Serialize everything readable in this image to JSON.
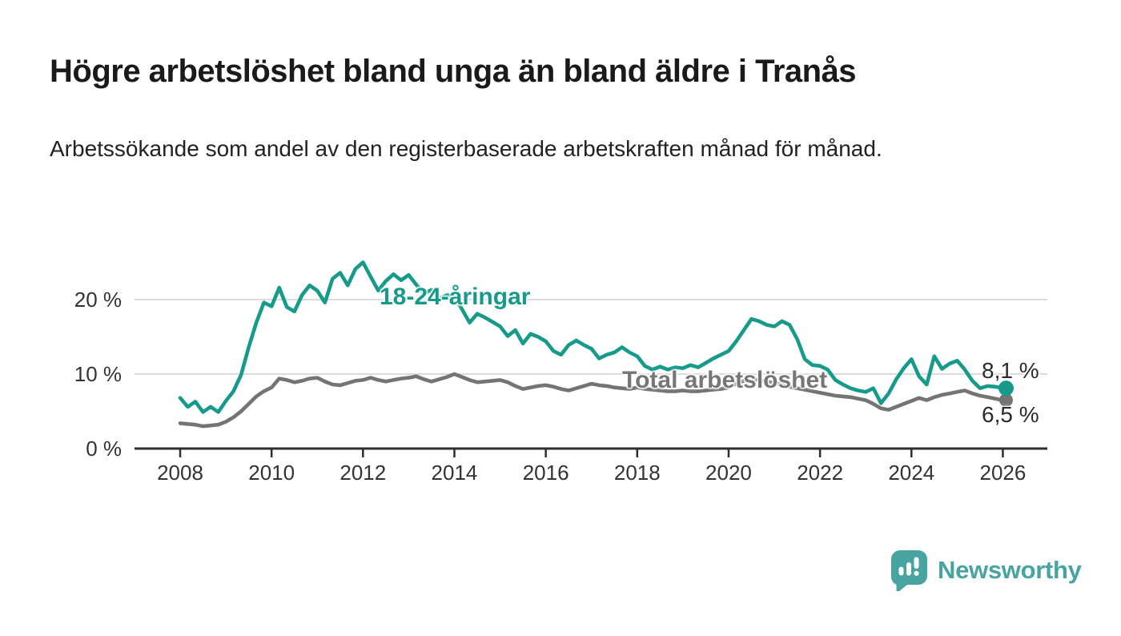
{
  "header": {
    "title": "Högre arbetslöshet bland unga än bland äldre i Tranås",
    "subtitle": "Arbetssökande som andel av den registerbaserade arbetskraften månad för månad."
  },
  "chart_data": {
    "type": "line",
    "grid": "horizontal",
    "legend": "inline-labels",
    "x_axis": {
      "tick_labels": [
        "2008",
        "2010",
        "2012",
        "2014",
        "2016",
        "2018",
        "2020",
        "2022",
        "2024",
        "2026"
      ],
      "tick_years": [
        2008,
        2010,
        2012,
        2014,
        2016,
        2018,
        2020,
        2022,
        2024,
        2026
      ]
    },
    "y_axis": {
      "tick_labels": [
        "0 %",
        "10 %",
        "20 %"
      ],
      "tick_values": [
        0,
        10,
        20
      ],
      "ylim": [
        0,
        27
      ],
      "gridline_values": [
        10,
        20
      ]
    },
    "x_start_year": 2008.0,
    "x_step_years": 0.16667,
    "series": [
      {
        "name": "Total arbetslöshet",
        "color": "#747474",
        "end_label": "6,5 %",
        "end_value": 6.5,
        "values": [
          3.4,
          3.3,
          3.2,
          3.0,
          3.1,
          3.2,
          3.6,
          4.2,
          5.0,
          6.0,
          7.0,
          7.7,
          8.2,
          9.4,
          9.2,
          8.9,
          9.1,
          9.4,
          9.5,
          9.0,
          8.6,
          8.5,
          8.8,
          9.1,
          9.2,
          9.5,
          9.2,
          9.0,
          9.2,
          9.4,
          9.5,
          9.7,
          9.3,
          9.0,
          9.3,
          9.6,
          10.0,
          9.6,
          9.2,
          8.9,
          9.0,
          9.1,
          9.2,
          8.9,
          8.4,
          8.0,
          8.2,
          8.4,
          8.5,
          8.3,
          8.0,
          7.8,
          8.1,
          8.4,
          8.7,
          8.5,
          8.4,
          8.2,
          8.1,
          8.0,
          8.2,
          8.0,
          7.9,
          7.8,
          7.7,
          7.7,
          7.8,
          7.7,
          7.7,
          7.8,
          7.9,
          8.0,
          8.2,
          8.7,
          9.1,
          9.3,
          9.2,
          9.0,
          8.8,
          8.6,
          8.3,
          8.1,
          7.9,
          7.7,
          7.5,
          7.3,
          7.1,
          7.0,
          6.9,
          6.7,
          6.5,
          6.0,
          5.4,
          5.2,
          5.6,
          6.0,
          6.4,
          6.8,
          6.5,
          6.9,
          7.2,
          7.4,
          7.6,
          7.8,
          7.4,
          7.1,
          6.9,
          6.7,
          6.5
        ]
      },
      {
        "name": "18-24-åringar",
        "color": "#169b8b",
        "end_label": "8,1 %",
        "end_value": 8.1,
        "values": [
          6.8,
          5.6,
          6.3,
          4.9,
          5.6,
          4.9,
          6.4,
          7.7,
          9.9,
          13.6,
          16.9,
          19.6,
          19.1,
          21.6,
          19.0,
          18.4,
          20.6,
          21.9,
          21.2,
          19.6,
          22.8,
          23.6,
          21.9,
          24.1,
          25.0,
          23.1,
          21.2,
          22.5,
          23.4,
          22.6,
          23.3,
          22.0,
          20.8,
          21.3,
          20.1,
          20.6,
          20.4,
          18.7,
          16.9,
          18.1,
          17.6,
          17.0,
          16.4,
          15.1,
          15.9,
          14.1,
          15.4,
          15.0,
          14.4,
          13.1,
          12.6,
          13.9,
          14.5,
          13.9,
          13.4,
          12.1,
          12.6,
          12.9,
          13.6,
          12.9,
          12.4,
          11.1,
          10.6,
          11.0,
          10.6,
          10.9,
          10.8,
          11.2,
          10.9,
          11.5,
          12.1,
          12.6,
          13.1,
          14.4,
          15.9,
          17.4,
          17.1,
          16.6,
          16.4,
          17.1,
          16.6,
          14.7,
          12.0,
          11.2,
          11.1,
          10.6,
          9.2,
          8.6,
          8.1,
          7.8,
          7.6,
          8.1,
          6.1,
          7.4,
          9.3,
          10.8,
          12.0,
          9.7,
          8.6,
          12.4,
          10.7,
          11.4,
          11.8,
          10.6,
          9.1,
          8.1,
          8.4,
          8.3,
          8.1
        ]
      }
    ]
  },
  "branding": {
    "logo_text": "Newsworthy",
    "logo_color": "#47a4a0"
  }
}
